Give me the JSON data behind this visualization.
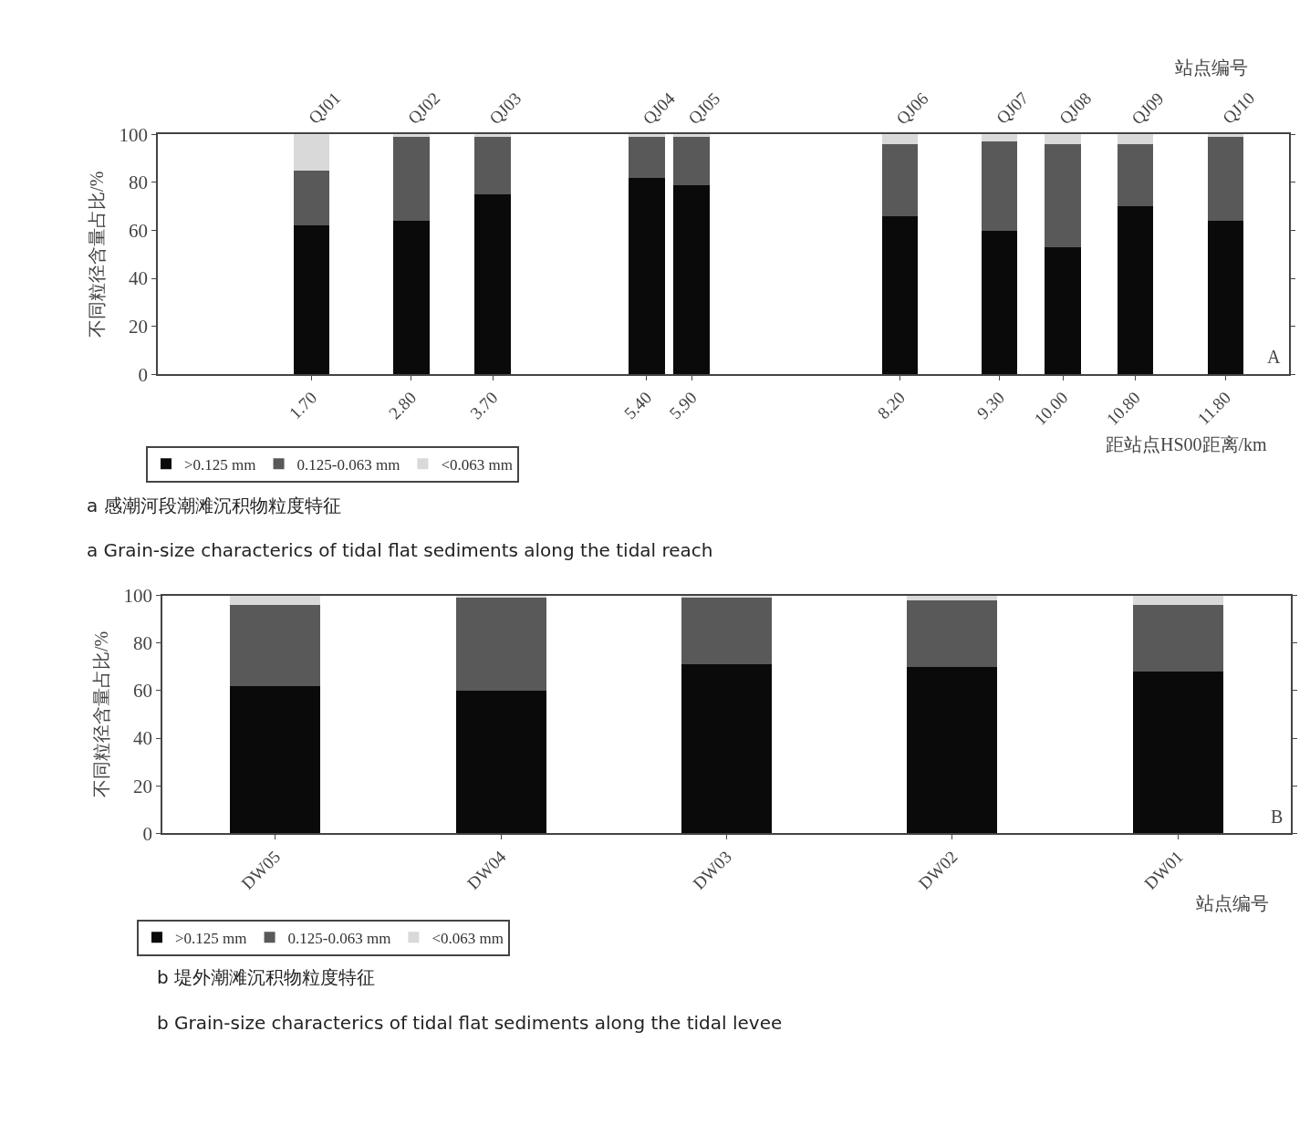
{
  "chart_data": [
    {
      "type": "bar",
      "stacked": true,
      "ylabel": "不同粒径含量占比/%",
      "xlabel": "距站点HS00距离/km",
      "x": [
        1.7,
        2.8,
        3.7,
        5.4,
        5.9,
        8.2,
        9.3,
        10.0,
        10.8,
        11.8
      ],
      "xlim": [
        0,
        12.5
      ],
      "xticks": [
        {
          "value": 1.7,
          "label": "1.70"
        },
        {
          "value": 2.8,
          "label": "2.80"
        },
        {
          "value": 3.7,
          "label": "3.70"
        },
        {
          "value": 5.4,
          "label": "5.40"
        },
        {
          "value": 5.9,
          "label": "5.90"
        },
        {
          "value": 8.2,
          "label": "8.20"
        },
        {
          "value": 9.3,
          "label": "9.30"
        },
        {
          "value": 10.0,
          "label": "10.00"
        },
        {
          "value": 10.8,
          "label": "10.80"
        },
        {
          "value": 11.8,
          "label": "11.80"
        }
      ],
      "ylim": [
        0,
        100
      ],
      "yticks": [
        0,
        20,
        40,
        60,
        80,
        100
      ],
      "legend": "bottom",
      "series": [
        {
          "name": ">0.125 mm",
          "color": "#0a0a0a",
          "values": [
            62,
            64,
            75,
            82,
            79,
            66,
            60,
            53,
            70,
            64
          ]
        },
        {
          "name": "0.125-0.063 mm",
          "color": "#595959",
          "values": [
            23,
            35,
            24,
            17,
            20,
            30,
            37,
            43,
            26,
            35
          ]
        },
        {
          "name": "<0.063 mm",
          "color": "#d9d9d9",
          "values": [
            15,
            1,
            1,
            1,
            1,
            4,
            3,
            4,
            4,
            1
          ]
        }
      ],
      "annotations": [
        "A",
        "a 感潮河段潮滩沉积物粒度特征",
        "a Grain-size characterics of tidal flat sediments along the tidal reach",
        "站点编号",
        {
          "text": "QJ01",
          "x": 1.7,
          "y": 100
        },
        {
          "text": "QJ02",
          "x": 2.8,
          "y": 100
        },
        {
          "text": "QJ03",
          "x": 3.7,
          "y": 100
        },
        {
          "text": "QJ04",
          "x": 5.4,
          "y": 100
        },
        {
          "text": "QJ05",
          "x": 5.9,
          "y": 100
        },
        {
          "text": "QJ06",
          "x": 8.2,
          "y": 100
        },
        {
          "text": "QJ07",
          "x": 9.3,
          "y": 100
        },
        {
          "text": "QJ08",
          "x": 10.0,
          "y": 100
        },
        {
          "text": "QJ09",
          "x": 10.8,
          "y": 100
        },
        {
          "text": "QJ10",
          "x": 11.8,
          "y": 100
        }
      ]
    },
    {
      "type": "bar",
      "stacked": true,
      "ylabel": "不同粒径含量占比/%",
      "xlabel": "站点编号",
      "categories": [
        "DW05",
        "DW04",
        "DW03",
        "DW02",
        "DW01"
      ],
      "ylim": [
        0,
        100
      ],
      "yticks": [
        0,
        20,
        40,
        60,
        80,
        100
      ],
      "legend": "bottom",
      "series": [
        {
          "name": ">0.125 mm",
          "color": "#0a0a0a",
          "values": [
            62,
            60,
            71,
            70,
            68
          ]
        },
        {
          "name": "0.125-0.063 mm",
          "color": "#595959",
          "values": [
            34,
            39,
            28,
            28,
            28
          ]
        },
        {
          "name": "<0.063 mm",
          "color": "#d9d9d9",
          "values": [
            4,
            1,
            1,
            2,
            4
          ]
        }
      ],
      "annotations": [
        "B",
        "b 堤外潮滩沉积物粒度特征",
        "b Grain-size characterics of tidal flat sediments along the tidal levee"
      ]
    }
  ]
}
